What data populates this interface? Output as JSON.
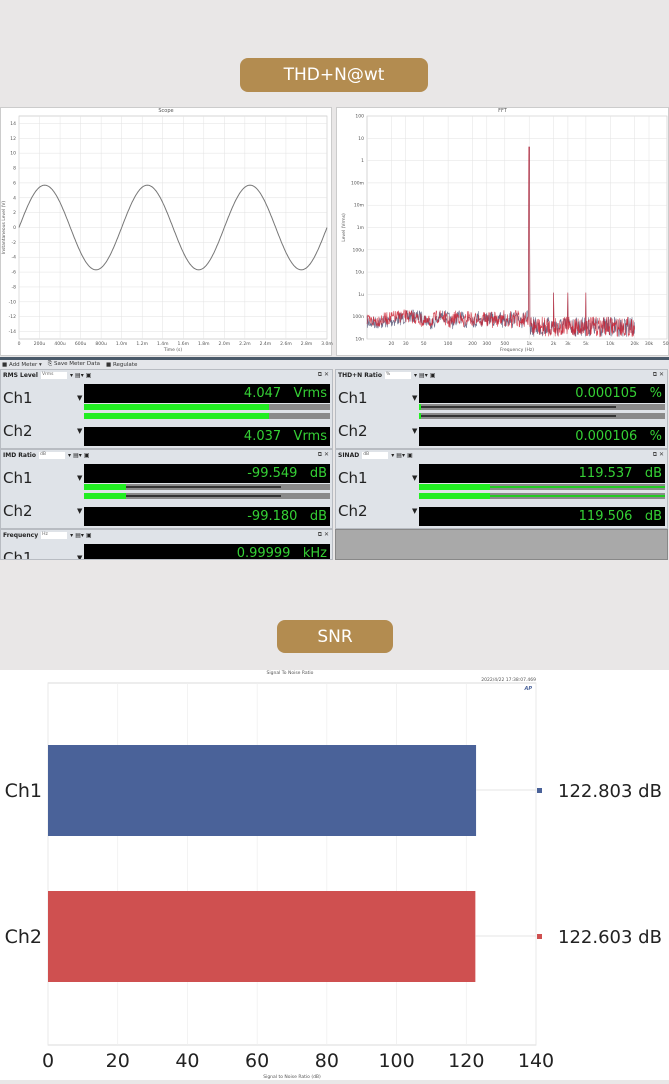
{
  "section1": {
    "label": "THD+N@wt"
  },
  "section2": {
    "label": "SNR"
  },
  "scope": {
    "title": "Scope",
    "xlabel": "Time (s)",
    "ylabel": "Instantaneous Level (V)",
    "xticks": [
      "0",
      "200u",
      "400u",
      "600u",
      "800u",
      "1.0m",
      "1.2m",
      "1.4m",
      "1.6m",
      "1.8m",
      "2.0m",
      "2.2m",
      "2.4m",
      "2.6m",
      "2.8m",
      "3.0m"
    ],
    "yticks": [
      "14",
      "12",
      "10",
      "8",
      "6",
      "4",
      "2",
      "0",
      "-2",
      "-4",
      "-6",
      "-8",
      "-10",
      "-12",
      "-14"
    ],
    "chart_data": {
      "type": "line",
      "frequency_hz": 1000,
      "amplitude_v": 5.7,
      "xlim": [
        0,
        0.003
      ],
      "ylim": [
        -15,
        15
      ],
      "color": "#777777"
    }
  },
  "fft": {
    "title": "FFT",
    "xlabel": "Frequency (Hz)",
    "ylabel": "Level (Vrms)",
    "xticks": [
      "20",
      "30",
      "50",
      "100",
      "200",
      "300",
      "500",
      "1k",
      "2k",
      "3k",
      "5k",
      "10k",
      "20k",
      "30k",
      "50k"
    ],
    "xtick_values": [
      20,
      30,
      50,
      100,
      200,
      300,
      500,
      1000,
      2000,
      3000,
      5000,
      10000,
      20000,
      30000,
      50000
    ],
    "yticks": [
      "100",
      "10",
      "1",
      "100m",
      "10m",
      "1m",
      "100u",
      "10u",
      "1u",
      "100n",
      "10n"
    ],
    "chart_data": {
      "type": "line",
      "xscale": "log",
      "yscale": "log",
      "xlim": [
        10,
        50000
      ],
      "ylim": [
        1e-08,
        100
      ],
      "fundamental_hz": 1000,
      "fundamental_vrms": 4.04,
      "harmonics_hz": [
        2000,
        3000,
        5000
      ],
      "harmonic_vrms": 1.2e-06,
      "noise_floor_vrms": 1e-07,
      "series_colors": [
        "#555577",
        "#cc2233"
      ]
    }
  },
  "toolbar": {
    "add_meter": "Add Meter ▾",
    "save": "Save Meter Data",
    "regulate": "Regulate"
  },
  "meters": [
    {
      "title": "RMS Level",
      "unit": "Vrms",
      "ch": [
        {
          "name": "Ch1",
          "value": "4.047",
          "unit": "Vrms",
          "level": 0.75
        },
        {
          "name": "Ch2",
          "value": "4.037",
          "unit": "Vrms",
          "level": 0.75
        }
      ]
    },
    {
      "title": "THD+N Ratio",
      "unit": "%",
      "ch": [
        {
          "name": "Ch1",
          "value": "0.000105",
          "unit": "%",
          "level": 0.01
        },
        {
          "name": "Ch2",
          "value": "0.000106",
          "unit": "%",
          "level": 0.01
        }
      ]
    },
    {
      "title": "IMD Ratio",
      "unit": "dB",
      "ch": [
        {
          "name": "Ch1",
          "value": "-99.549",
          "unit": "dB",
          "level": 0.17
        },
        {
          "name": "Ch2",
          "value": "-99.180",
          "unit": "dB",
          "level": 0.17
        }
      ]
    },
    {
      "title": "SINAD",
      "unit": "dB",
      "ch": [
        {
          "name": "Ch1",
          "value": "119.537",
          "unit": "dB",
          "level": 0.29
        },
        {
          "name": "Ch2",
          "value": "119.506",
          "unit": "dB",
          "level": 0.29
        }
      ]
    },
    {
      "title": "Frequency",
      "unit": "Hz",
      "ch": [
        {
          "name": "Ch1",
          "value": "0.99999",
          "unit": "kHz"
        }
      ]
    }
  ],
  "snr": {
    "title": "Signal To Noise Ratio",
    "timestamp": "2022/4/22 17:38:07.469",
    "logo": "AP",
    "xlabel": "Signal to Noise Ratio (dB)",
    "chart_data": {
      "type": "bar",
      "orientation": "horizontal",
      "categories": [
        "Ch1",
        "Ch2"
      ],
      "values": [
        122.803,
        122.603
      ],
      "value_labels": [
        "122.803 dB",
        "122.603 dB"
      ],
      "colors": [
        "#4a6299",
        "#cf5050"
      ],
      "xlim": [
        0,
        140
      ],
      "xticks": [
        "0",
        "20",
        "40",
        "60",
        "80",
        "100",
        "120",
        "140"
      ],
      "grid": true
    }
  }
}
